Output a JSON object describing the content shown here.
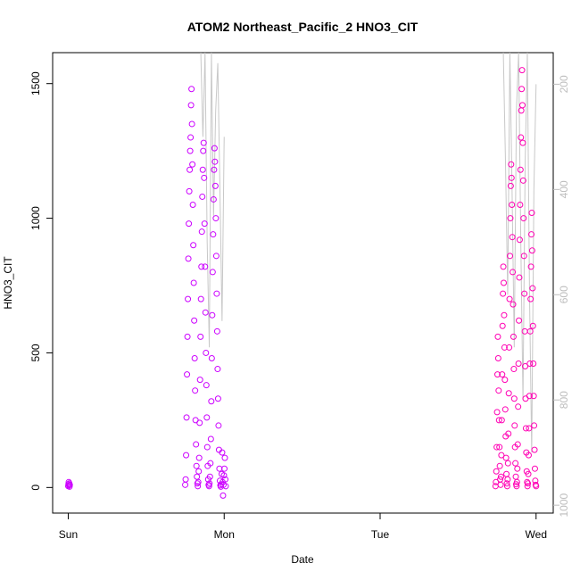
{
  "chart_data": {
    "type": "scatter",
    "title": "ATOM2 Northeast_Pacific_2 HNO3_CIT",
    "xlabel": "Date",
    "ylabel": "HNO3_CIT",
    "x_ticks": [
      "Sun",
      "Mon",
      "Tue",
      "Wed"
    ],
    "x_range_days": [
      -0.1,
      3.11
    ],
    "ylim": [
      -95,
      1615
    ],
    "y_ticks": [
      0,
      500,
      1000,
      1500
    ],
    "y2_ticks": [
      200,
      400,
      600,
      800,
      1000
    ],
    "y2lim": [
      1015,
      140
    ],
    "grid": false,
    "legend": "none",
    "colors": {
      "series_1": "#cc00ff",
      "series_2": "#ff00b4",
      "secondary_line": "#c8c8c8",
      "secondary_axis": "#bdbdbd"
    },
    "series": [
      {
        "color": "series_1",
        "segments": [
          {
            "x_start": 0.0,
            "x_end": 0.01,
            "values": [
              5,
              12,
              20,
              8,
              15,
              3,
              10
            ]
          },
          {
            "x_start": 0.75,
            "x_end": 1.01,
            "values": [
              10,
              30,
              120,
              260,
              420,
              560,
              700,
              850,
              980,
              1100,
              1180,
              1250,
              1300,
              1420,
              1480,
              1350,
              1200,
              1050,
              900,
              760,
              620,
              480,
              360,
              250,
              160,
              80,
              40,
              15,
              5,
              20,
              60,
              110,
              240,
              400,
              560,
              700,
              820,
              950,
              1080,
              1180,
              1250,
              1280,
              1150,
              980,
              820,
              650,
              500,
              380,
              260,
              150,
              80,
              30,
              10,
              5,
              15,
              40,
              90,
              180,
              320,
              480,
              640,
              800,
              940,
              1070,
              1180,
              1260,
              1210,
              1120,
              1000,
              860,
              720,
              580,
              440,
              330,
              230,
              140,
              70,
              25,
              8,
              3,
              12,
              50,
              130,
              20,
              -30,
              10,
              45,
              70,
              110,
              30,
              5
            ]
          }
        ]
      },
      {
        "color": "series_2",
        "segments": [
          {
            "x_start": 2.74,
            "x_end": 3.0,
            "values": [
              5,
              20,
              60,
              150,
              280,
              420,
              560,
              480,
              360,
              250,
              150,
              80,
              30,
              10,
              40,
              120,
              250,
              420,
              600,
              720,
              820,
              760,
              640,
              520,
              400,
              290,
              190,
              110,
              50,
              15,
              5,
              30,
              90,
              200,
              350,
              520,
              700,
              860,
              1000,
              1120,
              1200,
              1150,
              1050,
              930,
              800,
              680,
              560,
              440,
              330,
              230,
              150,
              90,
              40,
              12,
              5,
              20,
              70,
              160,
              300,
              460,
              620,
              780,
              920,
              1050,
              1180,
              1300,
              1400,
              1480,
              1550,
              1420,
              1280,
              1140,
              1000,
              860,
              720,
              580,
              450,
              330,
              220,
              130,
              60,
              20,
              5,
              15,
              50,
              120,
              220,
              340,
              460,
              580,
              700,
              820,
              940,
              1020,
              880,
              740,
              600,
              460,
              340,
              230,
              140,
              70,
              25,
              10,
              5
            ]
          }
        ]
      }
    ],
    "secondary_series": {
      "type": "line",
      "color": "secondary_line",
      "segments": [
        {
          "x_start": 0.85,
          "x_end": 1.0,
          "values": [
            140,
            300,
            140,
            500,
            700,
            140,
            450,
            250,
            160,
            400,
            650,
            300
          ]
        },
        {
          "x_start": 2.79,
          "x_end": 3.0,
          "values": [
            140,
            350,
            600,
            140,
            400,
            700,
            250,
            140,
            500,
            800,
            350,
            140,
            600,
            900,
            400,
            200
          ]
        }
      ]
    }
  }
}
